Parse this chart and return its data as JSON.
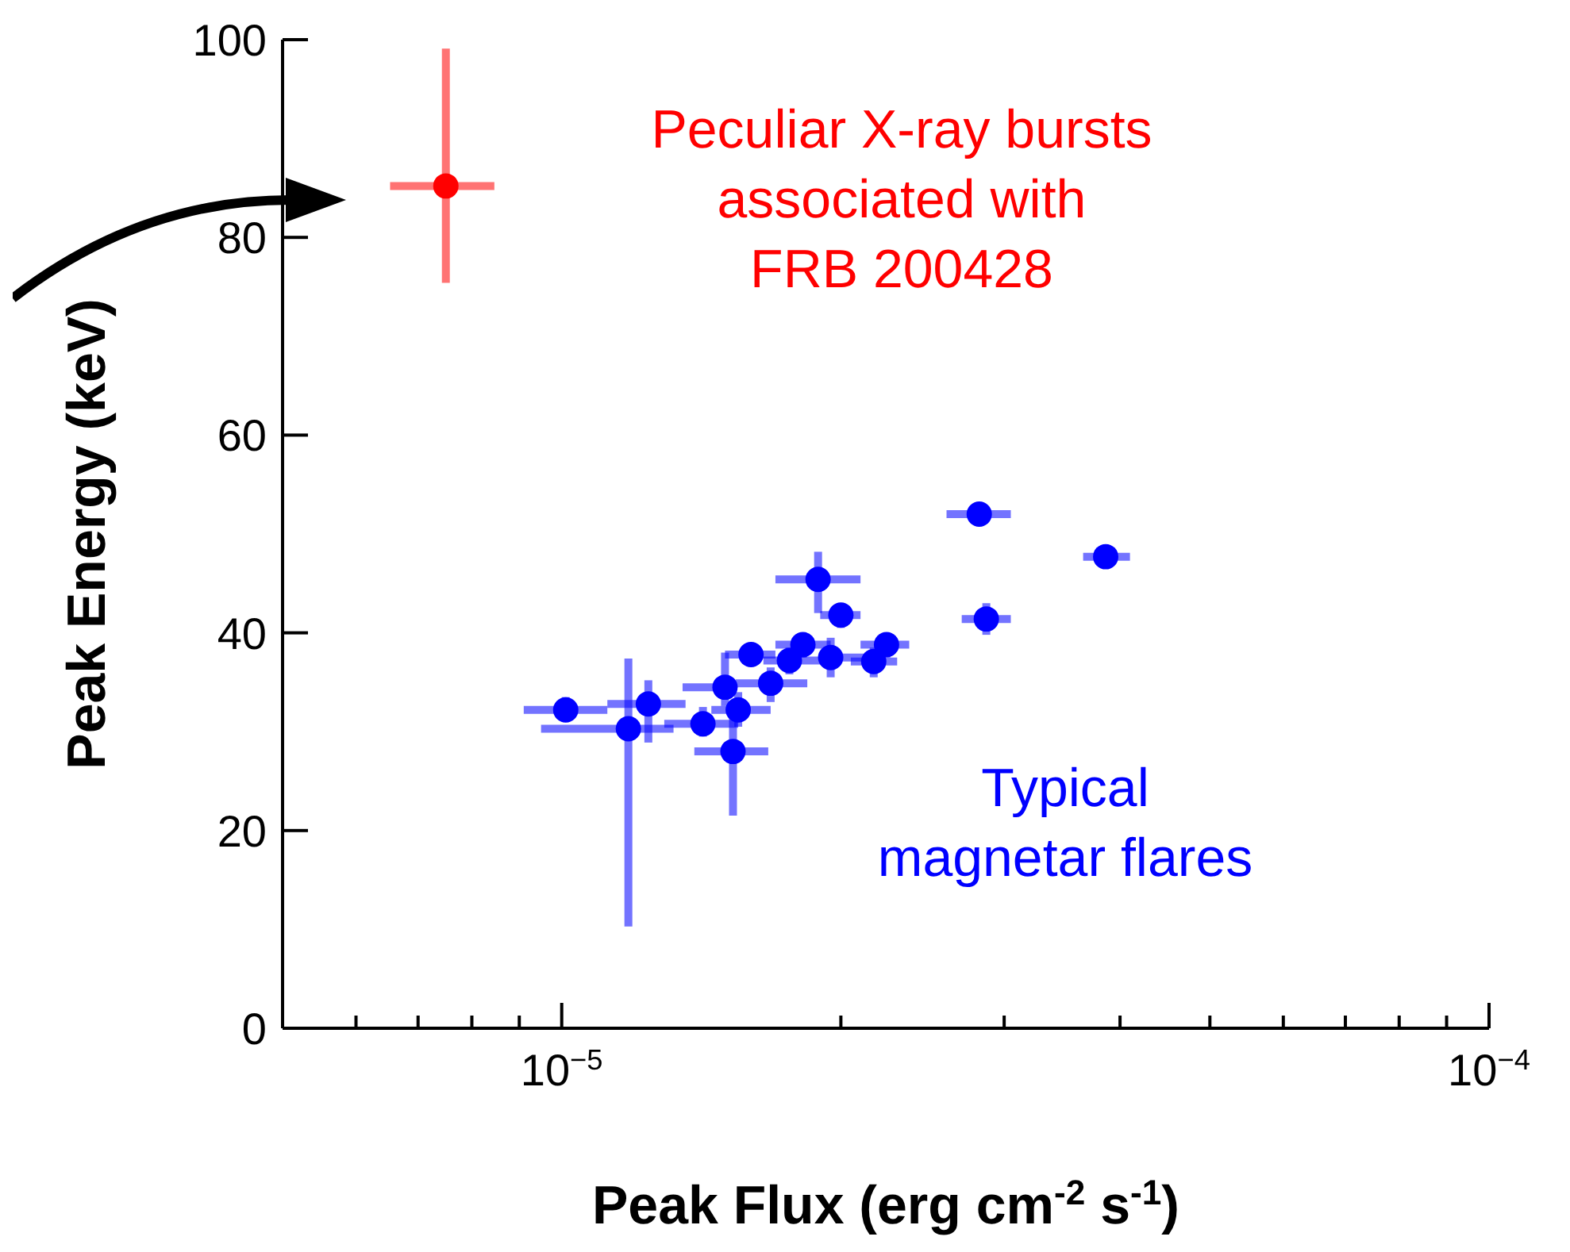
{
  "chart_data": {
    "type": "scatter",
    "xlabel": "Peak Flux (erg cm$^{-2}$ s$^{-1}$)",
    "ylabel": "Peak Energy (keV)",
    "log": "x",
    "grid": false,
    "legend": false,
    "marker": "circle",
    "xlim": [
      5e-06,
      0.0001
    ],
    "xticks": [
      {
        "value": 6e-06,
        "label": null
      },
      {
        "value": 7e-06,
        "label": null
      },
      {
        "value": 8e-06,
        "label": null
      },
      {
        "value": 9e-06,
        "label": null
      },
      {
        "value": 1e-05,
        "label": "10$^{−5}$"
      },
      {
        "value": 2e-05,
        "label": null
      },
      {
        "value": 3e-05,
        "label": null
      },
      {
        "value": 4e-05,
        "label": null
      },
      {
        "value": 5e-05,
        "label": null
      },
      {
        "value": 6e-05,
        "label": null
      },
      {
        "value": 7e-05,
        "label": null
      },
      {
        "value": 8e-05,
        "label": null
      },
      {
        "value": 9e-05,
        "label": null
      },
      {
        "value": 0.0001,
        "label": "10$^{−4}$"
      }
    ],
    "ylim": [
      0,
      100
    ],
    "yticks": [
      0,
      20,
      40,
      60,
      80,
      100
    ],
    "series": [
      {
        "name": "Peculiar X-ray bursts\nassociated with\nFRB 200428",
        "color": "#ff0000",
        "x": [
          7.5e-06
        ],
        "values": [
          85.2
        ],
        "xerrors": [
          [
            6.53e-06,
            8.46e-06
          ]
        ],
        "errors": [
          [
            75.4,
            99.1
          ]
        ]
      },
      {
        "name": "Typical\nmagnetar flares",
        "color": "#0000ff",
        "x": [
          1.01e-05,
          1.18e-05,
          1.24e-05,
          1.42e-05,
          1.5e-05,
          1.55e-05,
          1.53e-05,
          1.6e-05,
          1.68e-05,
          1.76e-05,
          1.82e-05,
          1.89e-05,
          2e-05,
          1.95e-05,
          2.17e-05,
          2.24e-05,
          2.82e-05,
          2.87e-05,
          3.86e-05
        ],
        "values": [
          32.2,
          30.3,
          32.8,
          30.8,
          34.5,
          32.2,
          28,
          37.8,
          34.9,
          37.2,
          38.8,
          45.4,
          41.8,
          37.5,
          37.1,
          38.8,
          52,
          41.4,
          47.7
        ],
        "xerrors": [
          [
            9.1e-06,
            1.12e-05
          ],
          [
            9.5e-06,
            1.32e-05
          ],
          [
            1.12e-05,
            1.36e-05
          ],
          [
            1.29e-05,
            1.55e-05
          ],
          [
            1.35e-05,
            1.5e-05
          ],
          [
            1.45e-05,
            1.68e-05
          ],
          [
            1.39e-05,
            1.67e-05
          ],
          [
            1.5e-05,
            1.7e-05
          ],
          [
            1.54e-05,
            1.84e-05
          ],
          [
            1.65e-05,
            1.9e-05
          ],
          [
            1.7e-05,
            1.95e-05
          ],
          [
            1.7e-05,
            2.1e-05
          ],
          [
            1.9e-05,
            2.1e-05
          ],
          [
            1.95e-05,
            2.13e-05
          ],
          [
            2.05e-05,
            2.3e-05
          ],
          [
            2.1e-05,
            2.37e-05
          ],
          [
            2.6e-05,
            3.05e-05
          ],
          [
            2.7e-05,
            3.05e-05
          ],
          [
            3.65e-05,
            4.1e-05
          ]
        ],
        "errors": [
          [
            31,
            33.5
          ],
          [
            10.3,
            37.4
          ],
          [
            28.9,
            35.2
          ],
          [
            29.5,
            32.5
          ],
          [
            32.6,
            38
          ],
          [
            30.5,
            34
          ],
          [
            21.5,
            32.6
          ],
          [
            36.8,
            38.8
          ],
          [
            33,
            36.5
          ],
          [
            35.8,
            38.5
          ],
          [
            37.5,
            40
          ],
          [
            42,
            48.2
          ],
          [
            40.5,
            43
          ],
          [
            35.5,
            39.5
          ],
          [
            35.5,
            38.5
          ],
          [
            37.5,
            40
          ],
          [
            50.8,
            53.2
          ],
          [
            39.8,
            43
          ],
          [
            46.6,
            48.8
          ]
        ]
      }
    ]
  }
}
